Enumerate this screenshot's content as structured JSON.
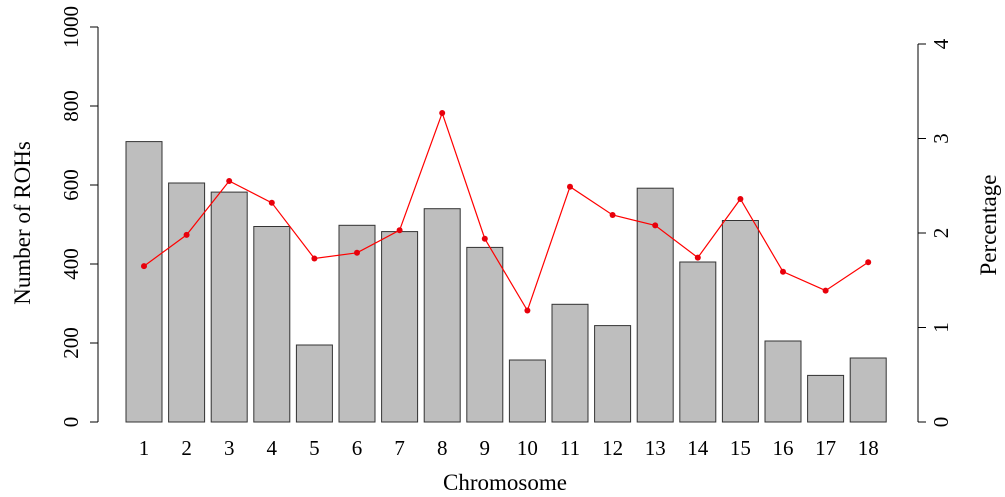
{
  "chart_data": {
    "type": "bar",
    "xlabel": "Chromosome",
    "ylabel": "Number of ROHs",
    "y2label": "Percentage",
    "categories": [
      "1",
      "2",
      "3",
      "4",
      "5",
      "6",
      "7",
      "8",
      "9",
      "10",
      "11",
      "12",
      "13",
      "14",
      "15",
      "16",
      "17",
      "18"
    ],
    "ylim": [
      0,
      1000
    ],
    "yticks": [
      0,
      200,
      400,
      600,
      800,
      1000
    ],
    "y2lim": [
      0,
      4
    ],
    "y2ticks": [
      0,
      1,
      2,
      3,
      4
    ],
    "series": [
      {
        "type": "bar",
        "axis": "left",
        "values": [
          710,
          605,
          582,
          495,
          195,
          498,
          482,
          540,
          442,
          157,
          298,
          244,
          592,
          405,
          510,
          205,
          118,
          162
        ]
      },
      {
        "type": "line",
        "axis": "right",
        "values": [
          1.65,
          1.98,
          2.55,
          2.32,
          1.73,
          1.79,
          2.03,
          3.27,
          1.94,
          1.18,
          2.49,
          2.19,
          2.08,
          1.74,
          2.36,
          1.59,
          1.39,
          1.69
        ]
      }
    ],
    "grid": false,
    "colors": {
      "bar_fill": "#bebebe",
      "bar_stroke": "#333333",
      "line": "#ff0000",
      "point": "#e8000b"
    }
  }
}
